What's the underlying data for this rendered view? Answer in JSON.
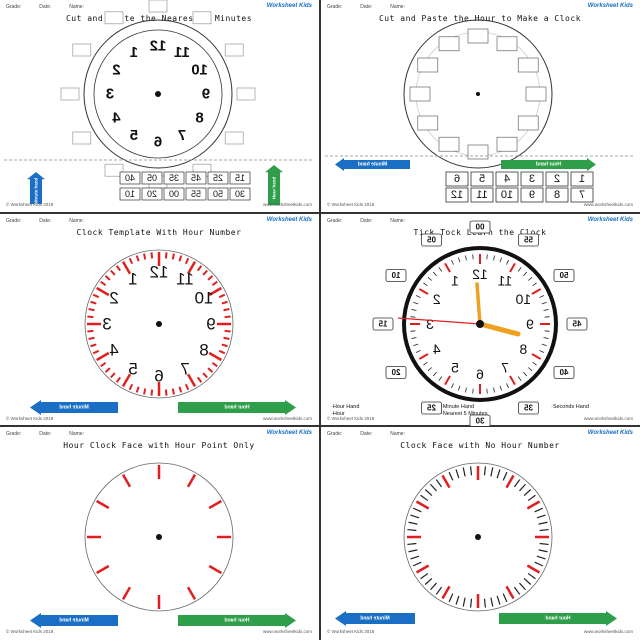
{
  "header": {
    "logo": "Worksheet Kids",
    "name": "Name:",
    "date": "Date:",
    "grade": "Grade:"
  },
  "footer": {
    "copyright": "© Worksheet Kids 2018",
    "website": "www.worksheetkids.com"
  },
  "panels": [
    {
      "title": "Cut and Paste the Hour to Make a Clock",
      "hour_hand": "Hour hand",
      "minute_hand": "Minute hand",
      "cards_row1": [
        "1",
        "2",
        "3",
        "4",
        "5",
        "6"
      ],
      "cards_row2": [
        "7",
        "8",
        "9",
        "10",
        "11",
        "12"
      ]
    },
    {
      "title": "Cut and Paste the Nearest 5 Minutes",
      "numbers": [
        "12",
        "1",
        "2",
        "3",
        "4",
        "5",
        "6",
        "7",
        "8",
        "9",
        "10",
        "11"
      ],
      "cards_row1": [
        "15",
        "25",
        "45",
        "35",
        "05",
        "40"
      ],
      "cards_row2": [
        "30",
        "50",
        "55",
        "00",
        "20",
        "10"
      ],
      "hour_hand": "Hour hand",
      "minute_hand": "Minute hand"
    },
    {
      "title": "Tick Tock Learn the Clock",
      "numbers": [
        "12",
        "1",
        "2",
        "3",
        "4",
        "5",
        "6",
        "7",
        "8",
        "9",
        "10",
        "11"
      ],
      "minutes": [
        "00",
        "05",
        "10",
        "15",
        "20",
        "25",
        "30",
        "35",
        "40",
        "45",
        "50",
        "55"
      ],
      "legend": [
        "·Hour Hand",
        "·Hour",
        "·Minute Hand",
        "·Nearest 5 Minutes",
        "·Seconds Hand"
      ]
    },
    {
      "title": "Clock Template With Hour Number",
      "numbers": [
        "12",
        "1",
        "2",
        "3",
        "4",
        "5",
        "6",
        "7",
        "8",
        "9",
        "10",
        "11"
      ],
      "hour_hand": "Hour hand",
      "minute_hand": "Minute hand"
    },
    {
      "title": "Clock Face with No Hour Number",
      "hour_hand": "Hour hand",
      "minute_hand": "Minute hand"
    },
    {
      "title": "Hour Clock Face with Hour Point Only",
      "hour_hand": "Hour hand",
      "minute_hand": "Minute hand"
    }
  ],
  "colors": {
    "red": "#e02020",
    "green": "#2e9e4a",
    "blue": "#1a6fc4",
    "orange": "#f0a020"
  }
}
